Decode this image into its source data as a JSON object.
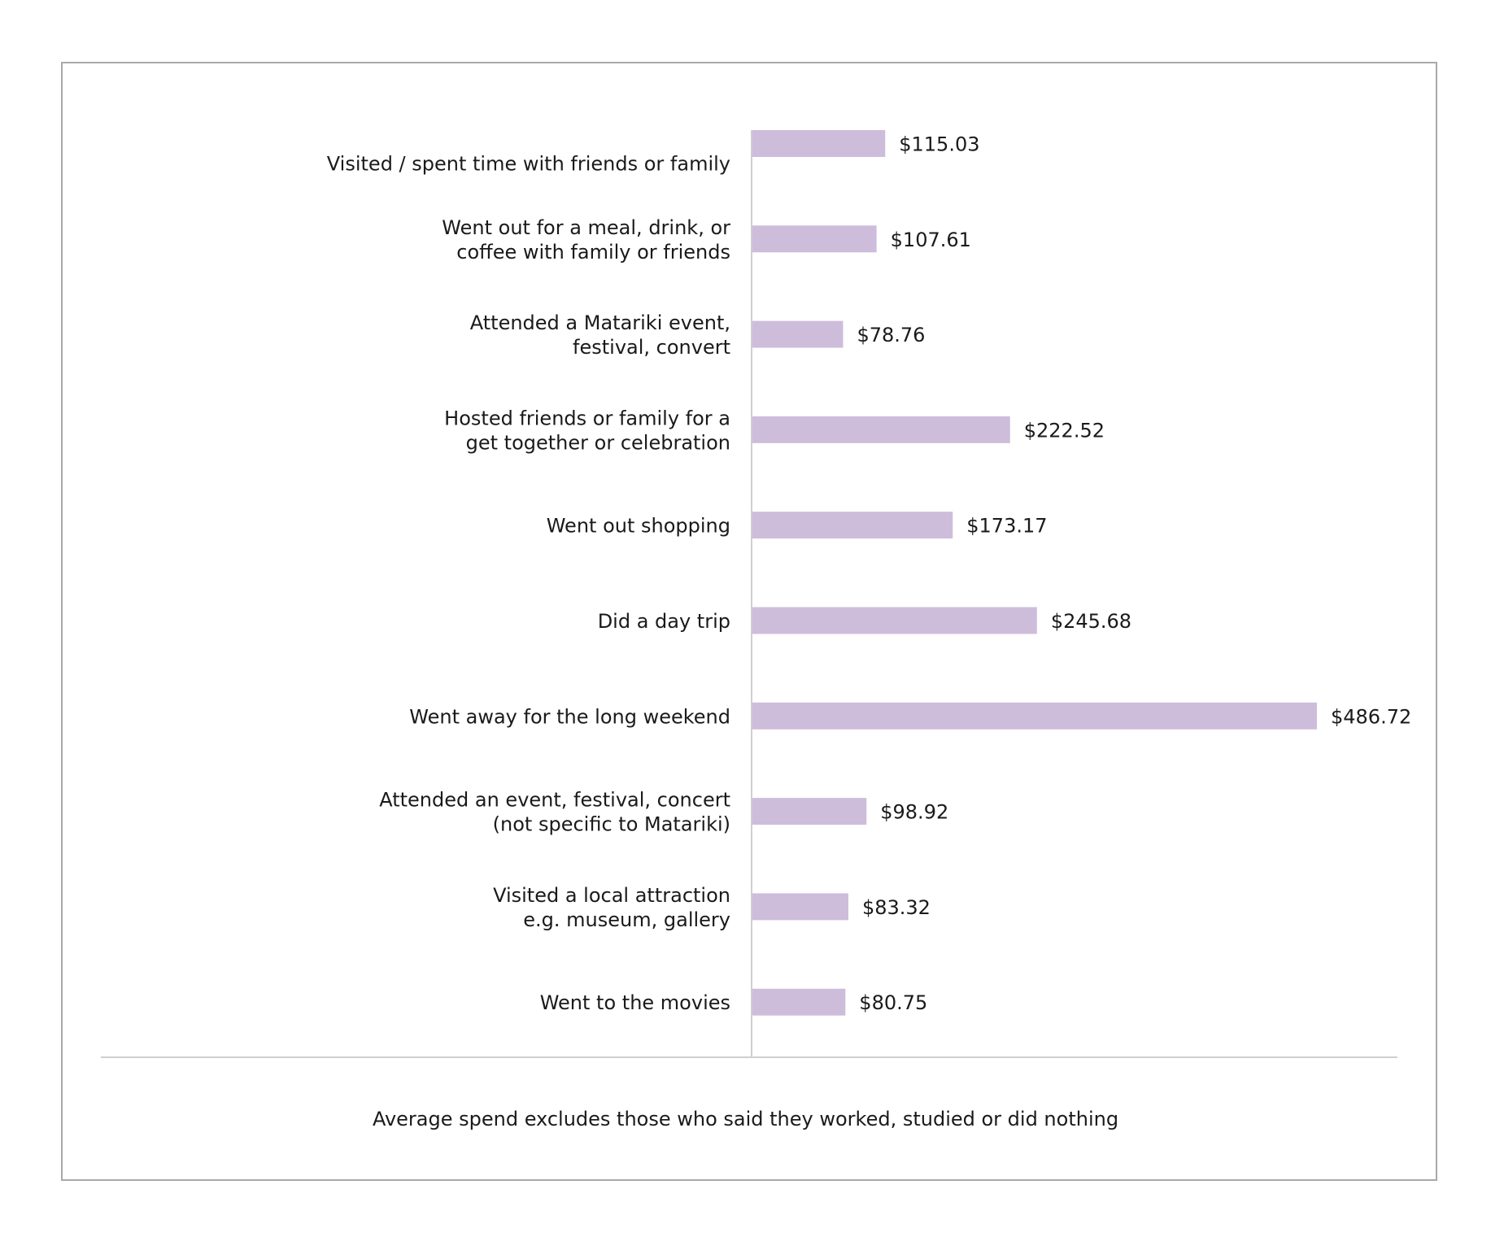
{
  "chart_data": {
    "type": "bar",
    "orientation": "horizontal",
    "categories": [
      "Visited / spent time with friends or family",
      "Went out for a meal, drink, or coffee with family or friends",
      "Attended a Matariki event, festival, convert",
      "Hosted friends or family for a get together or celebration",
      "Went out shopping",
      "Did a day trip",
      "Went away for the long weekend",
      "Attended an event, festival, concert (not specific to Matariki)",
      "Visited a local attraction e.g. museum, gallery",
      "Went to the movies"
    ],
    "category_lines": [
      [
        "Visited / spent time with friends or family"
      ],
      [
        "Went out for a meal, drink, or",
        "coffee with family or friends"
      ],
      [
        "Attended a Matariki event,",
        "festival, convert"
      ],
      [
        "Hosted friends or family for a",
        "get together or celebration"
      ],
      [
        "Went out shopping"
      ],
      [
        "Did a day trip"
      ],
      [
        "Went away for the long weekend"
      ],
      [
        "Attended an event, festival, concert",
        "(not specific to Matariki)"
      ],
      [
        "Visited a local attraction",
        "e.g. museum, gallery"
      ],
      [
        "Went to the movies"
      ]
    ],
    "values": [
      115.03,
      107.61,
      78.76,
      222.52,
      173.17,
      245.68,
      486.72,
      98.92,
      83.32,
      80.75
    ],
    "value_labels": [
      "$115.03",
      "$107.61",
      "$78.76",
      "$222.52",
      "$173.17",
      "$245.68",
      "$486.72",
      "$98.92",
      "$83.32",
      "$80.75"
    ],
    "bar_color": "#cdbddb",
    "axis_color": "#cfcfcf",
    "title": "",
    "xlabel": "",
    "ylabel": "",
    "xlim": [
      0,
      486.72
    ],
    "grid": false,
    "legend": "none"
  },
  "footnote": "Average spend excludes those who said they worked, studied or did nothing"
}
